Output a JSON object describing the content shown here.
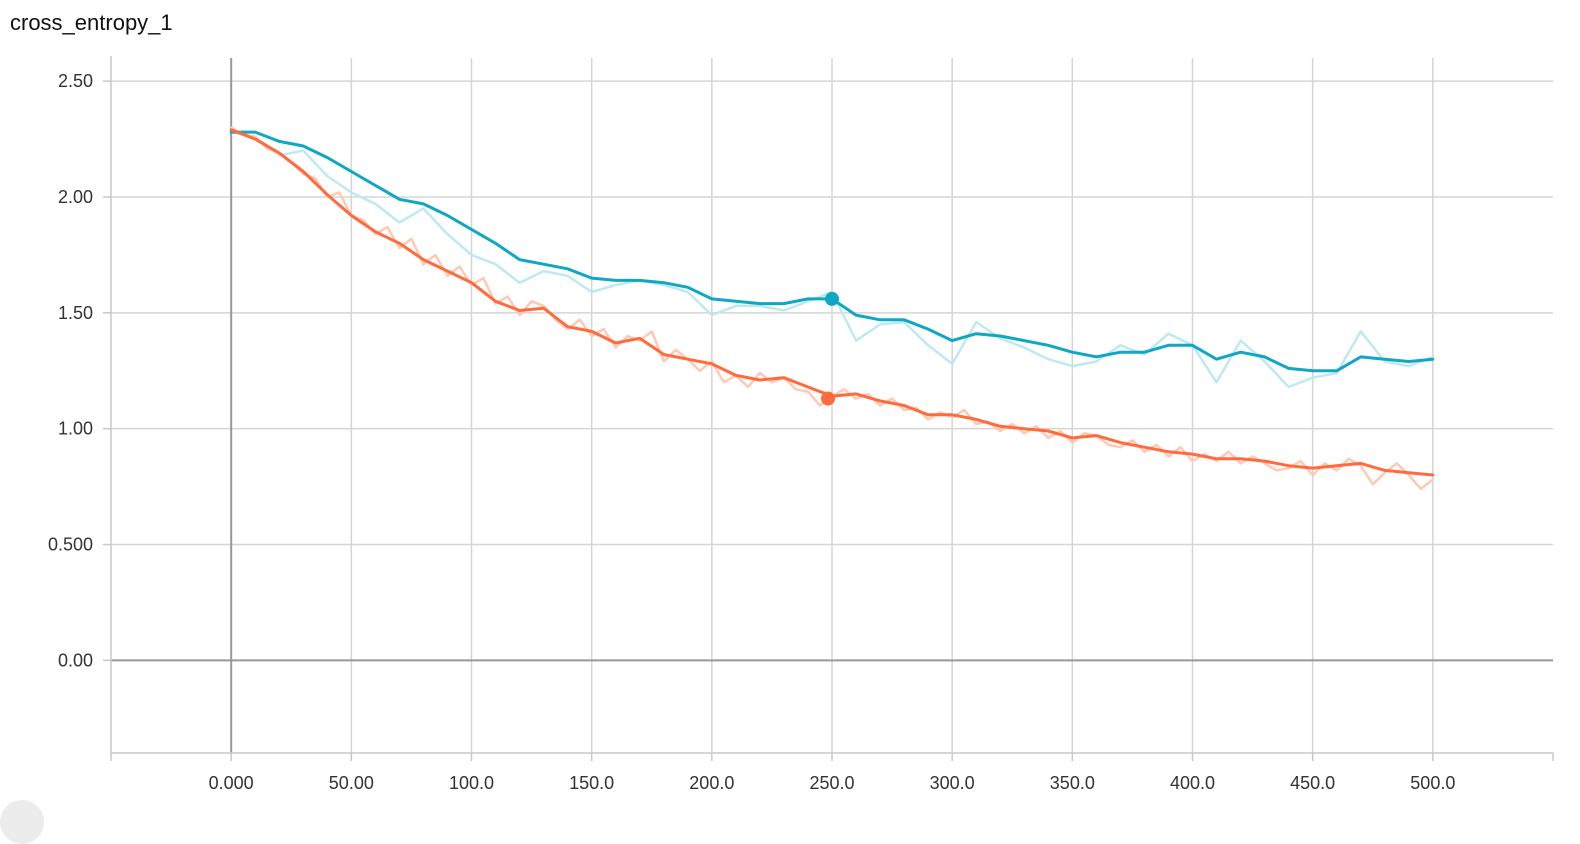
{
  "chart_data": {
    "type": "line",
    "title": "cross_entropy_1",
    "xlabel": "",
    "ylabel": "",
    "xlim": [
      -50,
      550
    ],
    "ylim": [
      -0.4,
      2.6
    ],
    "x_ticks": [
      0,
      50,
      100,
      150,
      200,
      250,
      300,
      350,
      400,
      450,
      500
    ],
    "x_tick_labels": [
      "0.000",
      "50.00",
      "100.0",
      "150.0",
      "200.0",
      "250.0",
      "300.0",
      "350.0",
      "400.0",
      "450.0",
      "500.0"
    ],
    "y_ticks": [
      0,
      0.5,
      1.0,
      1.5,
      2.0,
      2.5
    ],
    "y_tick_labels": [
      "0.00",
      "0.500",
      "1.00",
      "1.50",
      "2.00",
      "2.50"
    ],
    "grid": true,
    "colors": {
      "teal": "#0fa7c2",
      "teal_raw": "#bfe9f0",
      "orange": "#ff6b3d",
      "orange_raw": "#ffc9b4",
      "grid": "#d5d5d5",
      "axis": "#999999"
    },
    "hover_x": 250,
    "series": [
      {
        "key": "teal_smoothed",
        "x": [
          0,
          10,
          20,
          30,
          40,
          50,
          60,
          70,
          80,
          90,
          100,
          110,
          120,
          130,
          140,
          150,
          160,
          170,
          180,
          190,
          200,
          210,
          220,
          230,
          240,
          250,
          260,
          270,
          280,
          290,
          300,
          310,
          320,
          330,
          340,
          350,
          360,
          370,
          380,
          390,
          400,
          410,
          420,
          430,
          440,
          450,
          460,
          470,
          480,
          490,
          500
        ],
        "y": [
          2.28,
          2.28,
          2.24,
          2.22,
          2.17,
          2.11,
          2.05,
          1.99,
          1.97,
          1.92,
          1.86,
          1.8,
          1.73,
          1.71,
          1.69,
          1.65,
          1.64,
          1.64,
          1.63,
          1.61,
          1.56,
          1.55,
          1.54,
          1.54,
          1.56,
          1.56,
          1.49,
          1.47,
          1.47,
          1.43,
          1.38,
          1.41,
          1.4,
          1.38,
          1.36,
          1.33,
          1.31,
          1.33,
          1.33,
          1.36,
          1.36,
          1.3,
          1.33,
          1.31,
          1.26,
          1.25,
          1.25,
          1.31,
          1.3,
          1.29,
          1.3
        ]
      },
      {
        "key": "teal_raw",
        "x": [
          0,
          10,
          20,
          30,
          40,
          50,
          60,
          70,
          80,
          90,
          100,
          110,
          120,
          130,
          140,
          150,
          160,
          170,
          180,
          190,
          200,
          210,
          220,
          230,
          240,
          250,
          260,
          270,
          280,
          290,
          300,
          310,
          320,
          330,
          340,
          350,
          360,
          370,
          380,
          390,
          400,
          410,
          420,
          430,
          440,
          450,
          460,
          470,
          480,
          490,
          500
        ],
        "y": [
          2.28,
          2.26,
          2.18,
          2.2,
          2.09,
          2.02,
          1.97,
          1.89,
          1.95,
          1.84,
          1.75,
          1.71,
          1.63,
          1.68,
          1.66,
          1.59,
          1.62,
          1.64,
          1.62,
          1.59,
          1.49,
          1.53,
          1.53,
          1.51,
          1.55,
          1.59,
          1.38,
          1.45,
          1.46,
          1.36,
          1.28,
          1.46,
          1.39,
          1.35,
          1.3,
          1.27,
          1.29,
          1.36,
          1.32,
          1.41,
          1.36,
          1.2,
          1.38,
          1.29,
          1.18,
          1.22,
          1.24,
          1.42,
          1.29,
          1.27,
          1.31
        ]
      },
      {
        "key": "orange_smoothed",
        "x": [
          0,
          10,
          20,
          30,
          40,
          50,
          60,
          70,
          80,
          90,
          100,
          110,
          120,
          130,
          140,
          150,
          160,
          170,
          180,
          190,
          200,
          210,
          220,
          230,
          240,
          250,
          260,
          270,
          280,
          290,
          300,
          310,
          320,
          330,
          340,
          350,
          360,
          370,
          380,
          390,
          400,
          410,
          420,
          430,
          440,
          450,
          460,
          470,
          480,
          490,
          500
        ],
        "y": [
          2.29,
          2.25,
          2.19,
          2.11,
          2.01,
          1.92,
          1.85,
          1.8,
          1.73,
          1.68,
          1.63,
          1.55,
          1.51,
          1.52,
          1.44,
          1.42,
          1.37,
          1.39,
          1.32,
          1.3,
          1.28,
          1.23,
          1.21,
          1.22,
          1.18,
          1.14,
          1.15,
          1.12,
          1.1,
          1.06,
          1.06,
          1.04,
          1.01,
          1.0,
          0.99,
          0.96,
          0.97,
          0.94,
          0.92,
          0.9,
          0.89,
          0.87,
          0.87,
          0.86,
          0.84,
          0.83,
          0.84,
          0.85,
          0.82,
          0.81,
          0.8
        ]
      },
      {
        "key": "orange_raw",
        "x": [
          0,
          5,
          10,
          15,
          20,
          25,
          30,
          35,
          40,
          45,
          50,
          55,
          60,
          65,
          70,
          75,
          80,
          85,
          90,
          95,
          100,
          105,
          110,
          115,
          120,
          125,
          130,
          135,
          140,
          145,
          150,
          155,
          160,
          165,
          170,
          175,
          180,
          185,
          190,
          195,
          200,
          205,
          210,
          215,
          220,
          225,
          230,
          235,
          240,
          245,
          250,
          255,
          260,
          265,
          270,
          275,
          280,
          285,
          290,
          295,
          300,
          305,
          310,
          315,
          320,
          325,
          330,
          335,
          340,
          345,
          350,
          355,
          360,
          365,
          370,
          375,
          380,
          385,
          390,
          395,
          400,
          405,
          410,
          415,
          420,
          425,
          430,
          435,
          440,
          445,
          450,
          455,
          460,
          465,
          470,
          475,
          480,
          485,
          490,
          495,
          500
        ],
        "y": [
          2.3,
          2.27,
          2.26,
          2.21,
          2.19,
          2.15,
          2.1,
          2.08,
          2.0,
          2.02,
          1.92,
          1.9,
          1.84,
          1.87,
          1.78,
          1.82,
          1.71,
          1.75,
          1.66,
          1.7,
          1.62,
          1.65,
          1.54,
          1.57,
          1.49,
          1.55,
          1.53,
          1.47,
          1.43,
          1.47,
          1.4,
          1.43,
          1.35,
          1.4,
          1.38,
          1.42,
          1.29,
          1.34,
          1.3,
          1.25,
          1.29,
          1.2,
          1.23,
          1.18,
          1.24,
          1.2,
          1.22,
          1.17,
          1.16,
          1.1,
          1.14,
          1.17,
          1.13,
          1.15,
          1.1,
          1.13,
          1.08,
          1.09,
          1.04,
          1.07,
          1.05,
          1.08,
          1.02,
          1.03,
          0.99,
          1.02,
          0.98,
          1.01,
          0.96,
          0.99,
          0.94,
          0.98,
          0.97,
          0.93,
          0.92,
          0.95,
          0.9,
          0.93,
          0.88,
          0.92,
          0.86,
          0.89,
          0.86,
          0.9,
          0.85,
          0.88,
          0.85,
          0.82,
          0.83,
          0.86,
          0.8,
          0.85,
          0.82,
          0.87,
          0.84,
          0.76,
          0.81,
          0.85,
          0.8,
          0.74,
          0.78
        ]
      }
    ]
  }
}
